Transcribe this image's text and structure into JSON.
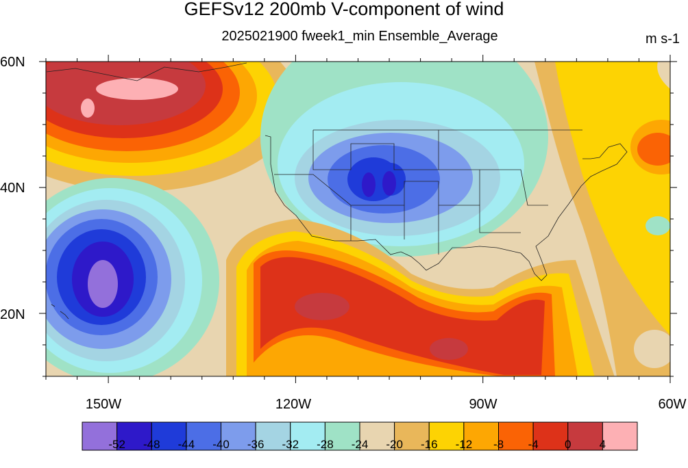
{
  "title": "GEFSv12 200mb V-component of wind",
  "subtitle": "2025021900 fweek1_min Ensemble_Average",
  "units": "m s-1",
  "lat_labels": [
    "60N",
    "40N",
    "20N"
  ],
  "lon_labels": [
    "150W",
    "120W",
    "90W",
    "60W"
  ],
  "colorbar": {
    "levels": [
      "-52",
      "-48",
      "-44",
      "-40",
      "-36",
      "-32",
      "-28",
      "-24",
      "-20",
      "-16",
      "-12",
      "-8",
      "-4",
      "0",
      "4"
    ],
    "colors": [
      "#9370db",
      "#2e19c9",
      "#1f3bd9",
      "#4c6ee6",
      "#7d9cec",
      "#a4d4e3",
      "#a3ecf2",
      "#9fe2c6",
      "#e8d5b0",
      "#e9b75a",
      "#fdd303",
      "#fda703",
      "#fa6305",
      "#dd3219",
      "#c63a3e",
      "#fdb0b4"
    ]
  },
  "map": {
    "projection": "cylindrical-equidistant",
    "lon_range": [
      "160W",
      "60W"
    ],
    "lat_range": [
      "10N",
      "60N"
    ]
  }
}
